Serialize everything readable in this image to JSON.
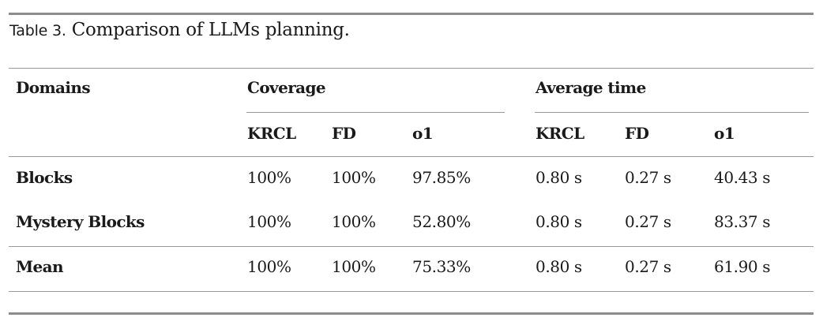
{
  "caption": {
    "label": "Table 3.",
    "text": "Comparison of LLMs planning."
  },
  "header": {
    "domains": "Domains",
    "coverage": "Coverage",
    "average_time": "Average time",
    "coverage_cols": [
      "KRCL",
      "FD",
      "o1"
    ],
    "time_cols": [
      "KRCL",
      "FD",
      "o1"
    ]
  },
  "rows": [
    {
      "domain": "Blocks",
      "coverage": [
        "100%",
        "100%",
        "97.85%"
      ],
      "time": [
        "0.80 s",
        "0.27 s",
        "40.43 s"
      ]
    },
    {
      "domain": "Mystery Blocks",
      "coverage": [
        "100%",
        "100%",
        "52.80%"
      ],
      "time": [
        "0.80 s",
        "0.27 s",
        "83.37 s"
      ]
    },
    {
      "domain": "Mean",
      "coverage": [
        "100%",
        "100%",
        "75.33%"
      ],
      "time": [
        "0.80 s",
        "0.27 s",
        "61.90 s"
      ]
    }
  ]
}
